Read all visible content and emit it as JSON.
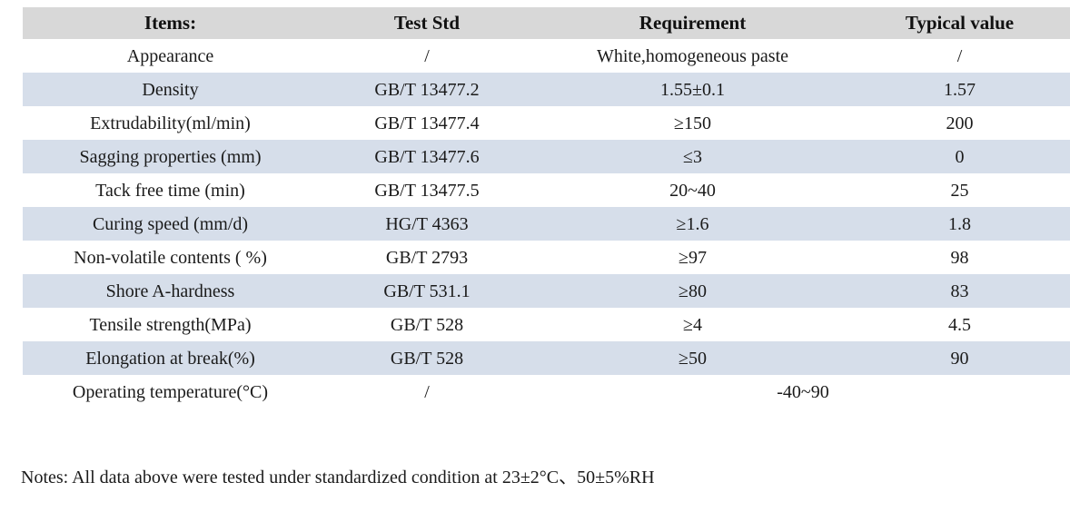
{
  "colors": {
    "header_bg": "#d8d8d8",
    "stripe_bg": "#d6deea",
    "text": "#1a1a1a"
  },
  "table": {
    "columns": {
      "items": "Items:",
      "test_std": "Test Std",
      "requirement": "Requirement",
      "typical_value": "Typical value"
    },
    "rows": [
      {
        "item": "Appearance",
        "std": "/",
        "req": "White,homogeneous paste",
        "typ": "/"
      },
      {
        "item": "Density",
        "std": "GB/T 13477.2",
        "req": "1.55±0.1",
        "typ": "1.57"
      },
      {
        "item": "Extrudability(ml/min)",
        "std": "GB/T 13477.4",
        "req": "≥150",
        "typ": "200"
      },
      {
        "item": "Sagging properties (mm)",
        "std": "GB/T 13477.6",
        "req": "≤3",
        "typ": "0"
      },
      {
        "item": "Tack free time (min)",
        "std": "GB/T 13477.5",
        "req": "20~40",
        "typ": "25"
      },
      {
        "item": "Curing speed (mm/d)",
        "std": "HG/T 4363",
        "req": "≥1.6",
        "typ": "1.8"
      },
      {
        "item": "Non-volatile contents ( %)",
        "std": "GB/T 2793",
        "req": "≥97",
        "typ": "98"
      },
      {
        "item": "Shore A-hardness",
        "std": "GB/T 531.1",
        "req": "≥80",
        "typ": "83"
      },
      {
        "item": "Tensile strength(MPa)",
        "std": "GB/T 528",
        "req": "≥4",
        "typ": "4.5"
      },
      {
        "item": "Elongation at break(%)",
        "std": "GB/T 528",
        "req": "≥50",
        "typ": "90"
      },
      {
        "item": "Operating temperature(°C)",
        "std": "/",
        "req": "-40~90",
        "typ": null,
        "merged": true
      }
    ]
  },
  "notes": "Notes: All data above were tested under standardized condition at 23±2°C、50±5%RH"
}
